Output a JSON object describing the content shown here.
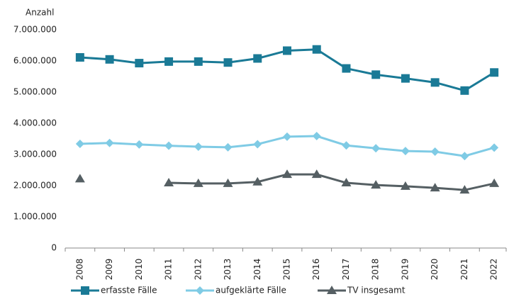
{
  "chart_data": {
    "type": "line",
    "y_label": "Anzahl",
    "categories": [
      "2008",
      "2009",
      "2010",
      "2011",
      "2012",
      "2013",
      "2014",
      "2015",
      "2016",
      "2017",
      "2018",
      "2019",
      "2020",
      "2021",
      "2022"
    ],
    "series": [
      {
        "name": "erfasste Fälle",
        "color": "#1a7a96",
        "marker": "square",
        "values": [
          6114000,
          6050000,
          5930000,
          5980000,
          5980000,
          5950000,
          6080000,
          6330000,
          6370000,
          5760000,
          5560000,
          5440000,
          5310000,
          5050000,
          5630000
        ]
      },
      {
        "name": "aufgeklärte Fälle",
        "color": "#7fcbe5",
        "marker": "diamond",
        "values": [
          3340000,
          3370000,
          3320000,
          3280000,
          3250000,
          3230000,
          3330000,
          3570000,
          3590000,
          3290000,
          3200000,
          3110000,
          3090000,
          2950000,
          3220000
        ]
      },
      {
        "name": "TV insgesamt",
        "color": "#555f63",
        "marker": "triangle",
        "values": [
          2220000,
          null,
          null,
          2090000,
          2070000,
          2070000,
          2120000,
          2360000,
          2360000,
          2090000,
          2020000,
          1980000,
          1930000,
          1860000,
          2070000
        ]
      }
    ],
    "ylim": [
      0,
      7000000
    ],
    "yticks": [
      0,
      {
        "value": 1000000,
        "label": "1.000.000"
      },
      {
        "value": 2000000,
        "label": "2.000.000"
      },
      {
        "value": 3000000,
        "label": "3.000.000"
      },
      {
        "value": 4000000,
        "label": "4.000.000"
      },
      {
        "value": 5000000,
        "label": "5.000.000"
      },
      {
        "value": 6000000,
        "label": "6.000.000"
      },
      {
        "value": 7000000,
        "label": "7.000.000"
      }
    ],
    "grid": false,
    "legend": "bottom"
  }
}
